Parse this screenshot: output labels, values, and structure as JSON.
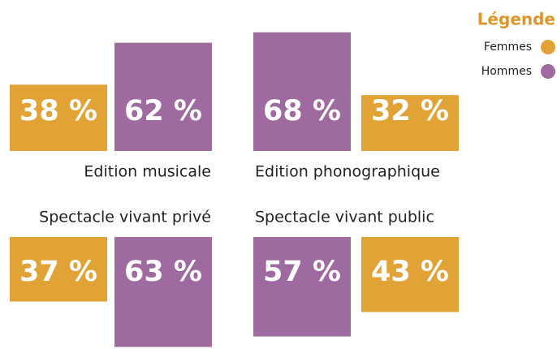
{
  "legend": {
    "title": "Légende",
    "items": [
      {
        "name": "Femmes",
        "color": "#e2a336"
      },
      {
        "name": "Hommes",
        "color": "#9e6a9f"
      }
    ]
  },
  "chart_data": [
    {
      "type": "bar",
      "title": "Edition musicale",
      "values": [
        38,
        62
      ],
      "value_labels": [
        "38 %",
        "62 %"
      ],
      "colors": [
        "#e2a336",
        "#9e6a9f"
      ]
    },
    {
      "type": "bar",
      "title": "Edition phonographique",
      "values": [
        68,
        32
      ],
      "value_labels": [
        "68 %",
        "32 %"
      ],
      "colors": [
        "#9e6a9f",
        "#e2a336"
      ]
    },
    {
      "type": "bar",
      "title": "Spectacle vivant privé",
      "values": [
        37,
        63
      ],
      "value_labels": [
        "37 %",
        "63 %"
      ],
      "colors": [
        "#e2a336",
        "#9e6a9f"
      ]
    },
    {
      "type": "bar",
      "title": "Spectacle vivant public",
      "values": [
        57,
        43
      ],
      "value_labels": [
        "57 %",
        "43 %"
      ],
      "colors": [
        "#9e6a9f",
        "#e2a336"
      ]
    }
  ]
}
